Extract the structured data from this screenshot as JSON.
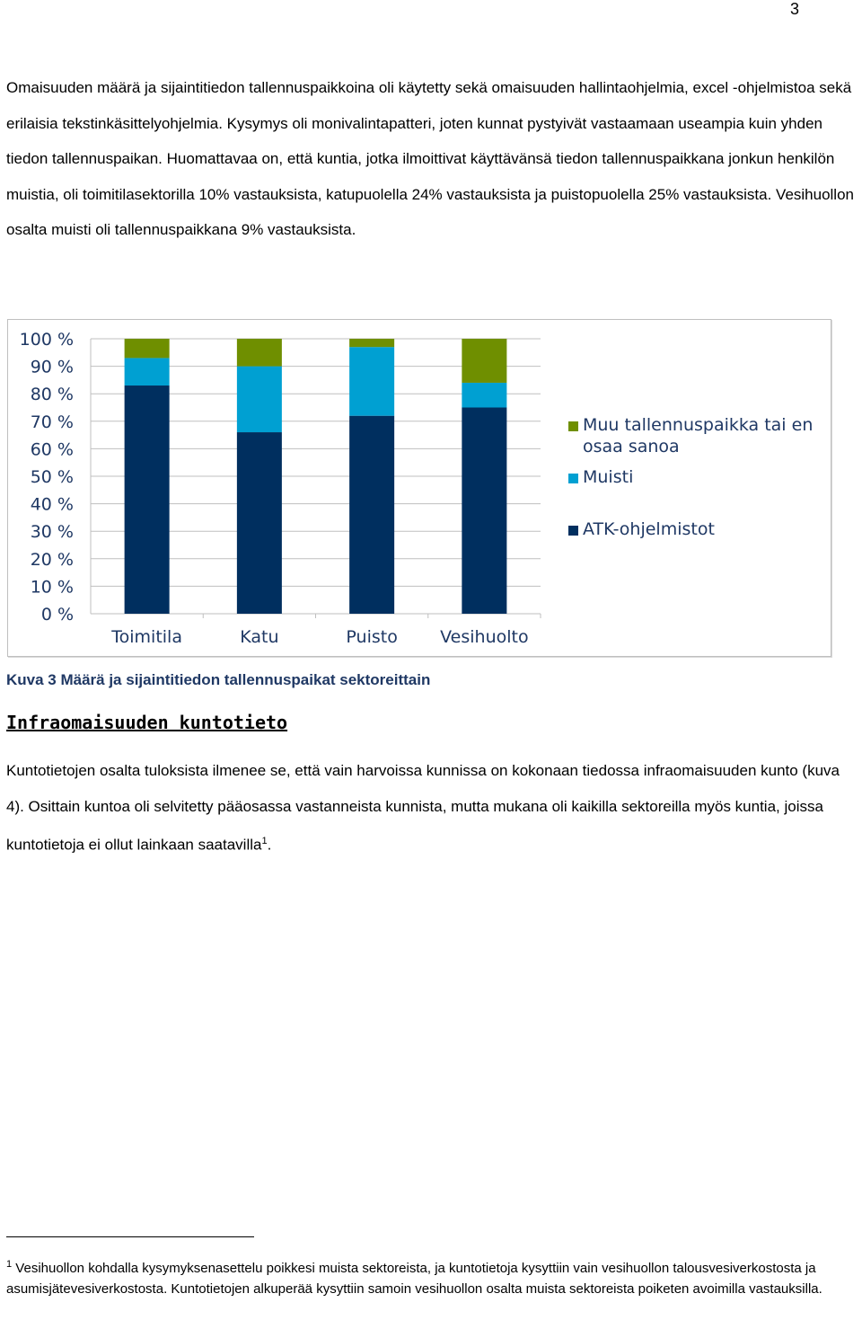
{
  "page_number": "3",
  "para1": "Omaisuuden määrä ja sijaintitiedon tallennuspaikkoina oli käytetty sekä omaisuuden hallintaohjelmia, excel -ohjelmistoa sekä erilaisia tekstinkäsittelyohjelmia. Kysymys oli monivalintapatteri, joten kunnat pystyivät vastaamaan useampia kuin yhden tiedon tallennuspaikan. Huomattavaa on, että kuntia, jotka ilmoittivat käyttävänsä tiedon tallennuspaikkana jonkun henkilön muistia, oli toimitilasektorilla 10% vastauksista, katupuolella 24% vastauksista ja puistopuolella 25% vastauksista. Vesihuollon osalta muisti oli tallennuspaikkana 9% vastauksista.",
  "caption": "Kuva 3 Määrä ja sijaintitiedon tallennuspaikat sektoreittain",
  "heading": "Infraomaisuuden kuntotieto",
  "para2_text": "Kuntotietojen osalta tuloksista ilmenee se, että vain harvoissa kunnissa on kokonaan tiedossa infraomaisuuden kunto (kuva 4). Osittain kuntoa oli selvitetty pääosassa vastanneista kunnista, mutta mukana oli kaikilla sektoreilla myös kuntia, joissa kuntotietoja ei ollut lainkaan saatavilla",
  "para2_sup": "1",
  "para2_end": ".",
  "footnote_mark": "1",
  "footnote_text": "Vesihuollon kohdalla kysymyksenasettelu poikkesi muista sektoreista, ja kuntotietoja kysyttiin vain vesihuollon talousvesiverkostosta ja asumisjätevesiverkostosta. Kuntotietojen alkuperää kysyttiin samoin vesihuollon osalta muista sektoreista poiketen avoimilla vastauksilla.",
  "chart_data": {
    "type": "bar",
    "stacked": true,
    "categories": [
      "Toimitila",
      "Katu",
      "Puisto",
      "Vesihuolto"
    ],
    "series": [
      {
        "name": "ATK-ohjelmistot",
        "color": "#002f5f",
        "values": [
          83,
          66,
          72,
          75
        ]
      },
      {
        "name": "Muisti",
        "color": "#00a0d2",
        "values": [
          10,
          24,
          25,
          9
        ]
      },
      {
        "name": "Muu tallennuspaikka tai en osaa sanoa",
        "color": "#6f8f00",
        "values": [
          7,
          10,
          3,
          16
        ]
      }
    ],
    "yticks": [
      "100 %",
      "90 %",
      "80 %",
      "70 %",
      "60 %",
      "50 %",
      "40 %",
      "30 %",
      "20 %",
      "10 %",
      "0 %"
    ],
    "ylim": [
      0,
      100
    ],
    "grid": true,
    "legend_position": "right",
    "legend_labels": [
      {
        "series": "Muu tallennuspaikka tai en osaa sanoa",
        "lines": [
          "Muu tallennuspaikka tai en",
          "osaa sanoa"
        ]
      },
      {
        "series": "Muisti",
        "lines": [
          "Muisti"
        ]
      },
      {
        "series": "ATK-ohjelmistot",
        "lines": [
          "ATK-ohjelmistot"
        ]
      }
    ],
    "text_color": "#1f3864",
    "grid_color": "#bfbfbf"
  }
}
